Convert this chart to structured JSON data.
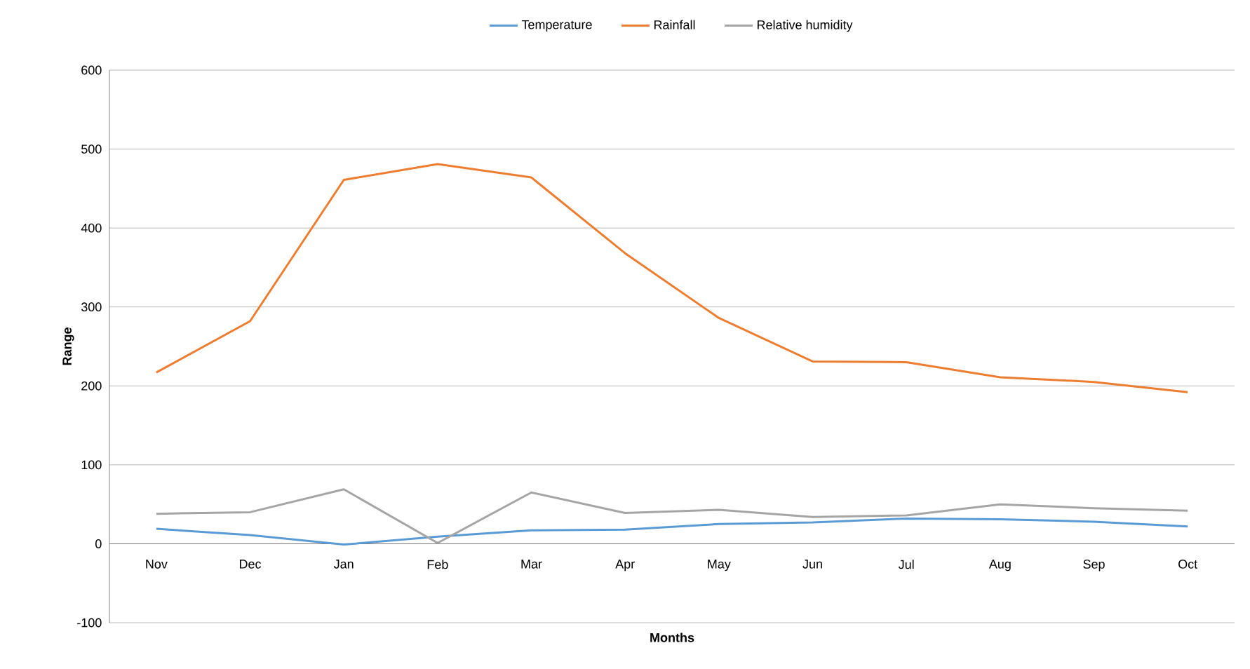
{
  "chart_data": {
    "type": "line",
    "xlabel": "Months",
    "ylabel": "Range",
    "categories": [
      "Nov",
      "Dec",
      "Jan",
      "Feb",
      "Mar",
      "Apr",
      "May",
      "Jun",
      "Jul",
      "Aug",
      "Sep",
      "Oct"
    ],
    "series": [
      {
        "name": "Temperature",
        "color": "#5b9bd5",
        "values": [
          19,
          11,
          -1,
          9,
          17,
          18,
          25,
          27,
          32,
          31,
          28,
          22
        ]
      },
      {
        "name": "Rainfall",
        "color": "#ed7d31",
        "values": [
          217,
          282,
          461,
          481,
          464,
          368,
          286,
          231,
          230,
          211,
          205,
          192
        ]
      },
      {
        "name": "Relative humidity",
        "color": "#a5a5a5",
        "values": [
          38,
          40,
          69,
          1,
          65,
          39,
          43,
          34,
          36,
          50,
          45,
          42
        ]
      }
    ],
    "ylim": [
      -100,
      600
    ],
    "yticks": [
      -100,
      0,
      100,
      200,
      300,
      400,
      500,
      600
    ],
    "grid": "y",
    "legend": "top",
    "marker": "none",
    "line_style": "solid"
  }
}
